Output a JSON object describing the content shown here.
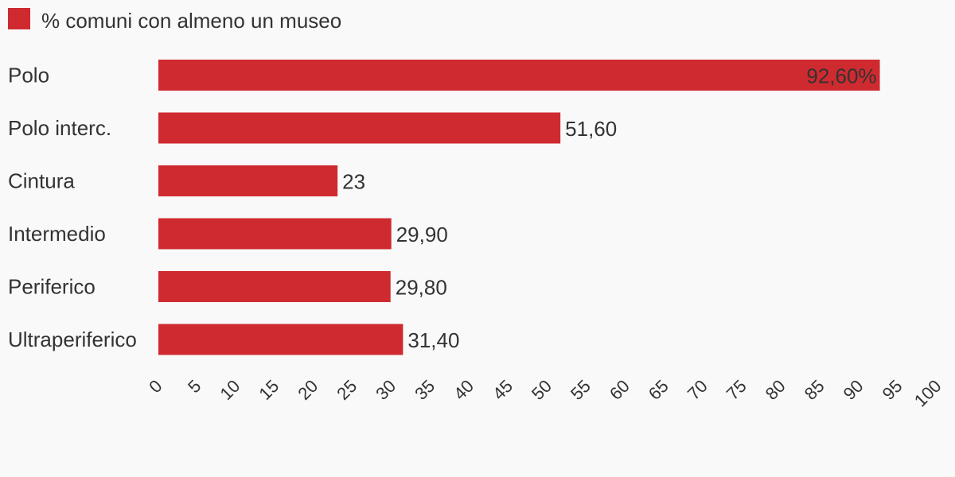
{
  "chart_data": {
    "type": "bar",
    "orientation": "horizontal",
    "categories": [
      "Polo",
      "Polo interc.",
      "Cintura",
      "Intermedio",
      "Periferico",
      "Ultraperiferico"
    ],
    "series": [
      {
        "name": "% comuni con almeno un museo",
        "values": [
          92.6,
          51.6,
          23,
          29.9,
          29.8,
          31.4
        ],
        "labels": [
          "92,60%",
          "51,60",
          "23",
          "29,90",
          "29,80",
          "31,40"
        ],
        "color": "#cf2a30"
      }
    ],
    "xlim": [
      0,
      100
    ],
    "xticks": [
      "0",
      "5",
      "10",
      "15",
      "20",
      "25",
      "30",
      "35",
      "40",
      "45",
      "50",
      "55",
      "60",
      "65",
      "70",
      "75",
      "80",
      "85",
      "90",
      "95",
      "100"
    ],
    "grid": false,
    "legend": "top-left"
  }
}
